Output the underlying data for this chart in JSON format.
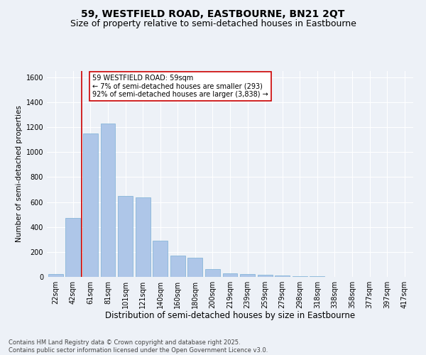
{
  "title": "59, WESTFIELD ROAD, EASTBOURNE, BN21 2QT",
  "subtitle": "Size of property relative to semi-detached houses in Eastbourne",
  "xlabel": "Distribution of semi-detached houses by size in Eastbourne",
  "ylabel": "Number of semi-detached properties",
  "categories": [
    "22sqm",
    "42sqm",
    "61sqm",
    "81sqm",
    "101sqm",
    "121sqm",
    "140sqm",
    "160sqm",
    "180sqm",
    "200sqm",
    "219sqm",
    "239sqm",
    "259sqm",
    "279sqm",
    "298sqm",
    "318sqm",
    "338sqm",
    "358sqm",
    "377sqm",
    "397sqm",
    "417sqm"
  ],
  "values": [
    20,
    470,
    1150,
    1230,
    650,
    640,
    290,
    170,
    155,
    60,
    30,
    20,
    15,
    10,
    5,
    3,
    2,
    1,
    1,
    1,
    1
  ],
  "bar_color": "#aec6e8",
  "bar_edge_color": "#7bafd4",
  "vline_color": "#cc0000",
  "vline_index": 1.5,
  "annotation_text": "59 WESTFIELD ROAD: 59sqm\n← 7% of semi-detached houses are smaller (293)\n92% of semi-detached houses are larger (3,838) →",
  "annotation_box_color": "#ffffff",
  "annotation_box_edge_color": "#cc0000",
  "ylim": [
    0,
    1650
  ],
  "yticks": [
    0,
    200,
    400,
    600,
    800,
    1000,
    1200,
    1400,
    1600
  ],
  "background_color": "#edf1f7",
  "plot_background_color": "#edf1f7",
  "grid_color": "#ffffff",
  "footer": "Contains HM Land Registry data © Crown copyright and database right 2025.\nContains public sector information licensed under the Open Government Licence v3.0.",
  "title_fontsize": 10,
  "subtitle_fontsize": 9,
  "xlabel_fontsize": 8.5,
  "ylabel_fontsize": 7.5,
  "tick_fontsize": 7,
  "annotation_fontsize": 7,
  "footer_fontsize": 6
}
